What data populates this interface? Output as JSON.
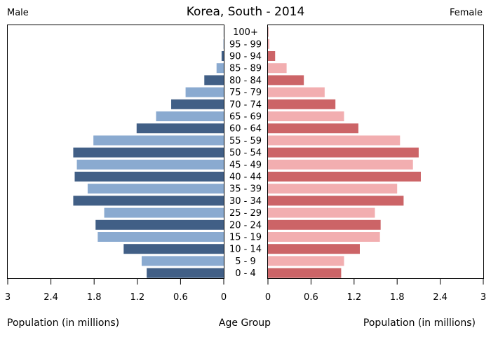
{
  "chart_data": {
    "type": "bar",
    "title": "Korea, South - 2014",
    "left_label": "Male",
    "right_label": "Female",
    "xlabel_left": "Population (in millions)",
    "xlabel_center": "Age Group",
    "xlabel_right": "Population (in millions)",
    "xlim": [
      0,
      3
    ],
    "ticks": [
      "3",
      "2.4",
      "1.8",
      "1.2",
      "0.6",
      "0",
      "0",
      "0.6",
      "1.2",
      "1.8",
      "2.4",
      "3"
    ],
    "tick_values": [
      3,
      2.4,
      1.8,
      1.2,
      0.6,
      0
    ],
    "categories": [
      "100+",
      "95 - 99",
      "90 - 94",
      "85 - 89",
      "80 - 84",
      "75 - 79",
      "70 - 74",
      "65 - 69",
      "60 - 64",
      "55 - 59",
      "50 - 54",
      "45 - 49",
      "40 - 44",
      "35 - 39",
      "30 - 34",
      "25 - 29",
      "20 - 24",
      "15 - 19",
      "10 - 14",
      "5 - 9",
      "0 - 4"
    ],
    "series": [
      {
        "name": "Male",
        "values": [
          0.001,
          0.004,
          0.03,
          0.1,
          0.27,
          0.53,
          0.73,
          0.94,
          1.21,
          1.81,
          2.09,
          2.04,
          2.07,
          1.89,
          2.09,
          1.66,
          1.78,
          1.75,
          1.39,
          1.14,
          1.07
        ]
      },
      {
        "name": "Female",
        "values": [
          0.005,
          0.02,
          0.1,
          0.26,
          0.5,
          0.79,
          0.94,
          1.06,
          1.26,
          1.84,
          2.1,
          2.02,
          2.13,
          1.8,
          1.89,
          1.49,
          1.57,
          1.56,
          1.28,
          1.06,
          1.02
        ]
      }
    ],
    "colors": {
      "male_dark": "#415f86",
      "male_light": "#8aaad0",
      "female_dark": "#cc6467",
      "female_light": "#f2aeb0",
      "frame": "#000000"
    }
  }
}
